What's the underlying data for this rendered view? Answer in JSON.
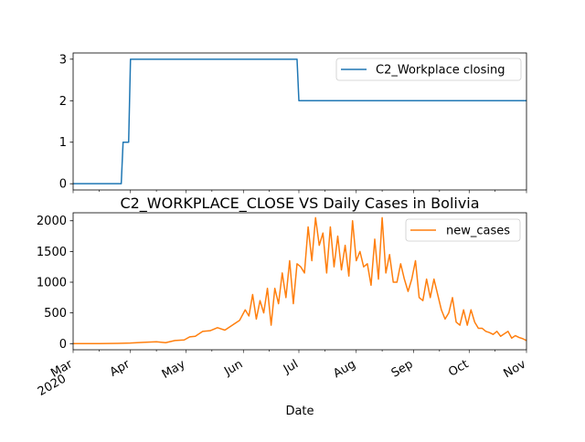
{
  "chart_data": [
    {
      "type": "line",
      "title": "",
      "xlabel": "",
      "ylabel": "",
      "xlim": [
        "2020-03-01",
        "2020-11-01"
      ],
      "ylim": [
        -0.15,
        3.15
      ],
      "yticks": [
        0,
        1,
        2,
        3
      ],
      "show_xtick_labels": false,
      "legend": "upper right",
      "grid": false,
      "series": [
        {
          "name": "C2_Workplace closing",
          "color": "#1f77b4",
          "x": [
            "2020-03-01",
            "2020-03-27",
            "2020-03-28",
            "2020-03-31",
            "2020-04-01",
            "2020-06-30",
            "2020-07-01",
            "2020-11-01"
          ],
          "values": [
            0,
            0,
            1,
            1,
            3,
            3,
            2,
            2
          ]
        }
      ]
    },
    {
      "type": "line",
      "title": "C2_WORKPLACE_CLOSE VS Daily Cases in Bolivia",
      "xlabel": "Date",
      "ylabel": "",
      "xlim": [
        "2020-03-01",
        "2020-11-01"
      ],
      "ylim": [
        -100,
        2130
      ],
      "yticks": [
        0,
        500,
        1000,
        1500,
        2000
      ],
      "xticks": [
        {
          "date": "2020-03-01",
          "label": "Mar",
          "sublabel": "2020"
        },
        {
          "date": "2020-04-01",
          "label": "Apr"
        },
        {
          "date": "2020-05-01",
          "label": "May"
        },
        {
          "date": "2020-06-01",
          "label": "Jun"
        },
        {
          "date": "2020-07-01",
          "label": "Jul"
        },
        {
          "date": "2020-08-01",
          "label": "Aug"
        },
        {
          "date": "2020-09-01",
          "label": "Sep"
        },
        {
          "date": "2020-10-01",
          "label": "Oct"
        },
        {
          "date": "2020-11-01",
          "label": "Nov"
        }
      ],
      "legend": "upper right",
      "grid": false,
      "series": [
        {
          "name": "new_cases",
          "color": "#ff7f0e",
          "x": [
            "2020-03-01",
            "2020-03-15",
            "2020-03-25",
            "2020-04-01",
            "2020-04-08",
            "2020-04-15",
            "2020-04-20",
            "2020-04-25",
            "2020-04-30",
            "2020-05-03",
            "2020-05-06",
            "2020-05-10",
            "2020-05-14",
            "2020-05-18",
            "2020-05-22",
            "2020-05-26",
            "2020-05-30",
            "2020-06-02",
            "2020-06-04",
            "2020-06-06",
            "2020-06-08",
            "2020-06-10",
            "2020-06-12",
            "2020-06-14",
            "2020-06-16",
            "2020-06-18",
            "2020-06-20",
            "2020-06-22",
            "2020-06-24",
            "2020-06-26",
            "2020-06-28",
            "2020-06-30",
            "2020-07-02",
            "2020-07-04",
            "2020-07-06",
            "2020-07-08",
            "2020-07-10",
            "2020-07-12",
            "2020-07-14",
            "2020-07-16",
            "2020-07-18",
            "2020-07-20",
            "2020-07-22",
            "2020-07-24",
            "2020-07-26",
            "2020-07-28",
            "2020-07-30",
            "2020-08-01",
            "2020-08-03",
            "2020-08-05",
            "2020-08-07",
            "2020-08-09",
            "2020-08-11",
            "2020-08-13",
            "2020-08-15",
            "2020-08-17",
            "2020-08-19",
            "2020-08-21",
            "2020-08-23",
            "2020-08-25",
            "2020-08-27",
            "2020-08-29",
            "2020-08-31",
            "2020-09-02",
            "2020-09-04",
            "2020-09-06",
            "2020-09-08",
            "2020-09-10",
            "2020-09-12",
            "2020-09-14",
            "2020-09-16",
            "2020-09-18",
            "2020-09-20",
            "2020-09-22",
            "2020-09-24",
            "2020-09-26",
            "2020-09-28",
            "2020-09-30",
            "2020-10-02",
            "2020-10-04",
            "2020-10-06",
            "2020-10-08",
            "2020-10-10",
            "2020-10-12",
            "2020-10-14",
            "2020-10-16",
            "2020-10-18",
            "2020-10-20",
            "2020-10-22",
            "2020-10-24",
            "2020-10-26",
            "2020-10-28",
            "2020-10-30",
            "2020-11-01"
          ],
          "values": [
            0,
            0,
            5,
            10,
            20,
            30,
            15,
            50,
            60,
            110,
            120,
            200,
            210,
            260,
            220,
            300,
            380,
            550,
            450,
            800,
            400,
            700,
            500,
            900,
            300,
            900,
            650,
            1150,
            750,
            1350,
            650,
            1300,
            1250,
            1150,
            1900,
            1350,
            2050,
            1600,
            1800,
            1150,
            1900,
            1250,
            1750,
            1200,
            1600,
            1100,
            2000,
            1350,
            1500,
            1250,
            1300,
            950,
            1700,
            1050,
            2050,
            1150,
            1450,
            1000,
            1000,
            1300,
            1050,
            850,
            1050,
            1350,
            750,
            700,
            1050,
            750,
            1050,
            800,
            550,
            400,
            500,
            750,
            350,
            300,
            550,
            300,
            550,
            350,
            250,
            250,
            200,
            180,
            150,
            200,
            120,
            160,
            200,
            90,
            130,
            100,
            80,
            50
          ]
        }
      ]
    }
  ]
}
